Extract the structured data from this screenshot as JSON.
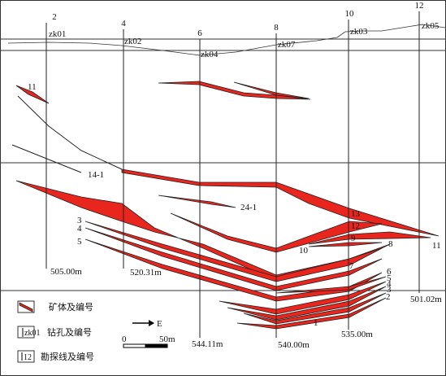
{
  "exploration_lines": [
    "2",
    "4",
    "6",
    "8",
    "10",
    "12"
  ],
  "drill_holes": [
    {
      "label": "zk01",
      "depth": "505.00m"
    },
    {
      "label": "zk02",
      "depth": "520.31m"
    },
    {
      "label": "zk04",
      "depth": "544.11m"
    },
    {
      "label": "zk07",
      "depth": "540.00m"
    },
    {
      "label": "zk03",
      "depth": "535.00m"
    },
    {
      "label": "zk05",
      "depth": "501.02m"
    }
  ],
  "ore_labels": [
    "11",
    "14-1",
    "24-1",
    "3",
    "4",
    "5",
    "13",
    "12",
    "10",
    "9",
    "8",
    "7",
    "11",
    "6",
    "5",
    "4",
    "3",
    "2",
    "1"
  ],
  "legend": {
    "ore_body": "矿体及编号",
    "hole_sample": "zk01",
    "drill_hole": "钻孔及编号",
    "line_sample": "12",
    "exploration_line": "勘探线及编号",
    "direction": "E",
    "scale_start": "0",
    "scale_end": "50m"
  }
}
